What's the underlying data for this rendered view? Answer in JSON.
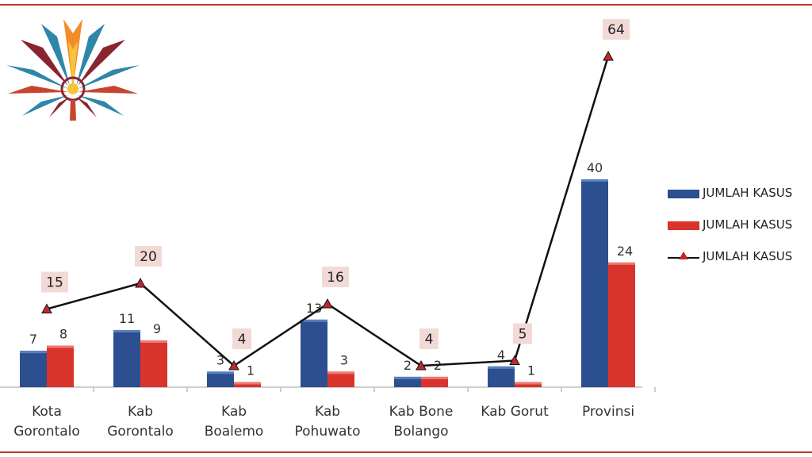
{
  "chart_data": {
    "type": "bar",
    "categories": [
      [
        "Kota",
        "Gorontalo"
      ],
      [
        "Kab",
        "Gorontalo"
      ],
      [
        "Kab",
        "Boalemo"
      ],
      [
        "Kab",
        "Pohuwato"
      ],
      [
        "Kab Bone",
        "Bolango"
      ],
      [
        "Kab Gorut"
      ],
      [
        "Provinsi"
      ]
    ],
    "series": [
      {
        "name": "JUMLAH KASUS",
        "kind": "bar",
        "color": "#2c4f8f",
        "values": [
          7,
          11,
          3,
          13,
          2,
          4,
          40
        ]
      },
      {
        "name": "JUMLAH KASUS",
        "kind": "bar",
        "color": "#d9342b",
        "values": [
          8,
          9,
          1,
          3,
          2,
          1,
          24
        ]
      },
      {
        "name": "JUMLAH KASUS",
        "kind": "line",
        "color": "#111111",
        "marker_color": "#c0272d",
        "values": [
          15,
          20,
          4,
          16,
          4,
          5,
          64
        ]
      }
    ],
    "ylim": [
      0,
      64
    ],
    "grid": false,
    "legend_position": "right"
  },
  "colors": {
    "frame": "#c0392b",
    "label_box": "#f3d9d6"
  }
}
